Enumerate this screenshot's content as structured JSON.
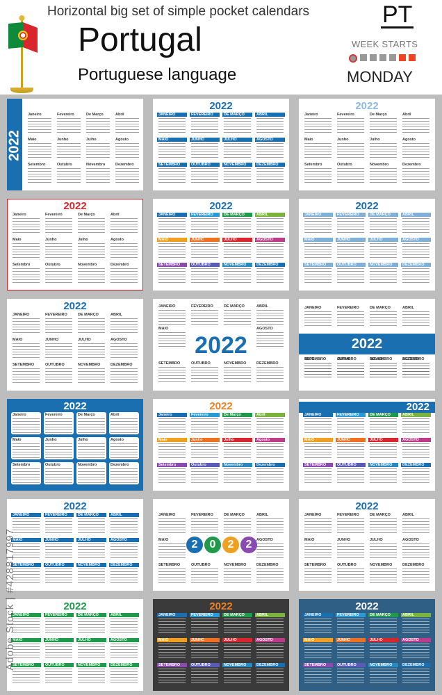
{
  "header": {
    "subtitle": "Horizontal big set of simple pocket calendars",
    "country": "Portugal",
    "language": "Portuguese language",
    "code": "PT",
    "week_starts": "WEEK STARTS",
    "start_day": "MONDAY"
  },
  "year": "2022",
  "months_title": [
    "Janeiro",
    "Fevereiro",
    "De Março",
    "Abril",
    "Maio",
    "Junho",
    "Julho",
    "Agosto",
    "Setembro",
    "Outubro",
    "Novembro",
    "Dezembro"
  ],
  "months_upper": [
    "JANEIRO",
    "FEVEREIRO",
    "DE MARÇO",
    "ABRIL",
    "MAIO",
    "JUNHO",
    "JULHO",
    "AGOSTO",
    "SETEMBRO",
    "OUTUBRO",
    "NOVEMBRO",
    "DEZEMBRO"
  ],
  "watermark": "Adobe Stock | #428817997",
  "colors": {
    "blue": "#1a6fb0",
    "red": "#d8262c",
    "green": "#1f9a4a",
    "dark": "#3a3a3a",
    "steel": "#2f5f85"
  }
}
